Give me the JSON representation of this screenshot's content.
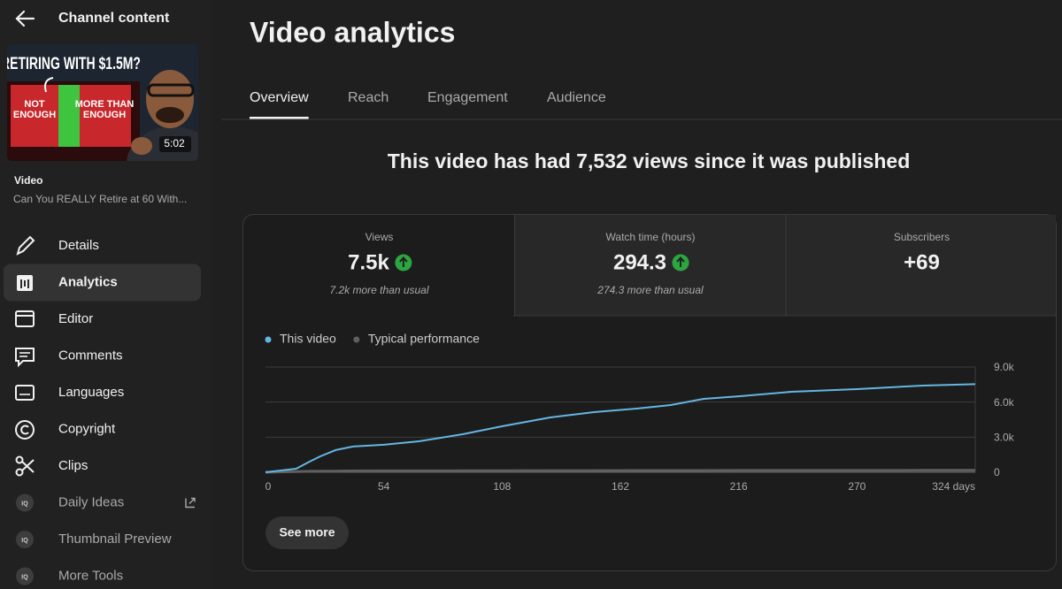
{
  "sidebar": {
    "back_title": "Channel content",
    "thumbnail": {
      "headline": "RETIRING WITH $1.5M?",
      "left_label": [
        "NOT",
        "ENOUGH"
      ],
      "right_label": [
        "MORE THAN",
        "ENOUGH"
      ],
      "duration": "5:02"
    },
    "video_label": "Video",
    "video_title": "Can You REALLY Retire at 60 With...",
    "nav": [
      {
        "label": "Details"
      },
      {
        "label": "Analytics",
        "active": true
      },
      {
        "label": "Editor"
      },
      {
        "label": "Comments"
      },
      {
        "label": "Languages"
      },
      {
        "label": "Copyright"
      },
      {
        "label": "Clips"
      },
      {
        "label": "Daily Ideas",
        "badge": "IQ",
        "external": true
      },
      {
        "label": "Thumbnail Preview",
        "badge": "IQ"
      },
      {
        "label": "More Tools",
        "badge": "IQ"
      }
    ]
  },
  "header": {
    "title": "Video analytics",
    "tabs": [
      "Overview",
      "Reach",
      "Engagement",
      "Audience"
    ],
    "active_tab": 0
  },
  "summary": "This video has had 7,532 views since it was published",
  "metrics": [
    {
      "label": "Views",
      "value": "7.5k",
      "trend": "up",
      "note": "7.2k more than usual"
    },
    {
      "label": "Watch time (hours)",
      "value": "294.3",
      "trend": "up",
      "note": "274.3 more than usual"
    },
    {
      "label": "Subscribers",
      "value": "+69"
    }
  ],
  "chart_data": {
    "type": "line",
    "x": [
      0,
      14,
      20,
      25,
      32,
      40,
      54,
      70,
      90,
      108,
      130,
      150,
      170,
      185,
      200,
      216,
      240,
      270,
      300,
      324
    ],
    "series": [
      {
        "name": "This video",
        "color": "#65b6e3",
        "values": [
          0,
          300,
          900,
          1360,
          1900,
          2200,
          2350,
          2650,
          3250,
          3930,
          4690,
          5140,
          5450,
          5750,
          6280,
          6500,
          6880,
          7110,
          7410,
          7532
        ]
      },
      {
        "name": "Typical performance",
        "color": "#5f5f5f",
        "values": [
          0,
          60,
          80,
          90,
          100,
          110,
          120,
          120,
          130,
          130,
          140,
          140,
          150,
          150,
          150,
          160,
          160,
          160,
          170,
          170
        ]
      }
    ],
    "xlim": [
      0,
      324
    ],
    "xticks": [
      0,
      54,
      108,
      162,
      216,
      270,
      {
        "value": 324,
        "label": "324 days"
      }
    ],
    "ylim": [
      0,
      9000
    ],
    "yticks": [
      0,
      {
        "value": 3000,
        "label": "3.0k"
      },
      {
        "value": 6000,
        "label": "6.0k"
      },
      {
        "value": 9000,
        "label": "9.0k"
      }
    ],
    "grid": true
  },
  "button": "See more"
}
